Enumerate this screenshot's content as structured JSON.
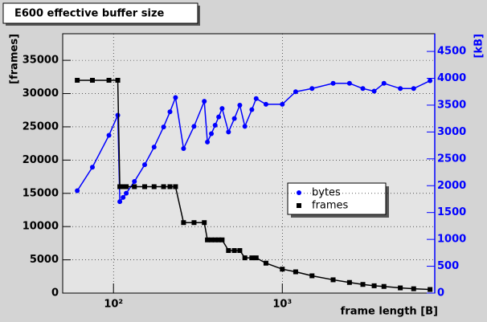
{
  "chart_data": {
    "type": "line",
    "title": "E600 effective buffer size",
    "x_label": "frame length [B]",
    "y_label": "[frames]",
    "y2_label": "[kB]",
    "log_x": true,
    "grid": true,
    "x": [
      61,
      75,
      94,
      106,
      109,
      114,
      119,
      133,
      153,
      174,
      198,
      216,
      233,
      260,
      300,
      345,
      360,
      380,
      400,
      420,
      440,
      480,
      520,
      560,
      600,
      660,
      700,
      800,
      1000,
      1200,
      1500,
      2000,
      2500,
      3000,
      3500,
      4000,
      5000,
      6000,
      7500
    ],
    "xlim": [
      50,
      8000
    ],
    "xticks": [
      {
        "value": 100,
        "label": "10²"
      },
      {
        "value": 1000,
        "label": "10³"
      }
    ],
    "ylim": [
      0,
      39000
    ],
    "yticks": [
      0,
      5000,
      10000,
      15000,
      20000,
      25000,
      30000,
      35000
    ],
    "y2lim": [
      0,
      4830
    ],
    "y2ticks": [
      0,
      500,
      1000,
      1500,
      2000,
      2500,
      3000,
      3500,
      4000,
      4500
    ],
    "series": [
      {
        "name": "bytes",
        "color": "#0000ff",
        "marker": "circle",
        "axis": "y2",
        "values": [
          1906,
          2344,
          2938,
          3313,
          1703,
          1781,
          1859,
          2078,
          2391,
          2719,
          3094,
          3375,
          3641,
          2691,
          3105,
          3572,
          2813,
          2969,
          3125,
          3281,
          3438,
          3000,
          3250,
          3500,
          3105,
          3416,
          3623,
          3516,
          3516,
          3750,
          3809,
          3906,
          3906,
          3809,
          3760,
          3906,
          3809,
          3809,
          3955
        ]
      },
      {
        "name": "frames",
        "color": "#000000",
        "marker": "square",
        "values": [
          32000,
          32000,
          32000,
          32000,
          16000,
          16000,
          16000,
          16000,
          16000,
          16000,
          16000,
          16000,
          16000,
          10600,
          10600,
          10600,
          8000,
          8000,
          8000,
          8000,
          8000,
          6400,
          6400,
          6400,
          5300,
          5300,
          5300,
          4500,
          3600,
          3200,
          2600,
          2000,
          1600,
          1300,
          1100,
          1000,
          780,
          650,
          540
        ]
      }
    ]
  }
}
